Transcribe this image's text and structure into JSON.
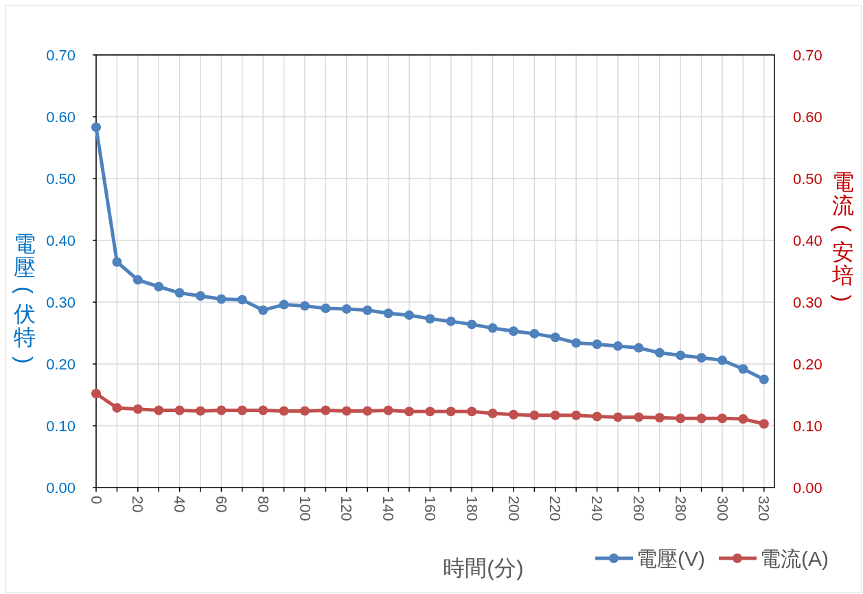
{
  "chart_data": {
    "type": "line",
    "xlabel": "時間(分)",
    "ylabel": "電壓(伏特)",
    "y2label": "電流(安培)",
    "x": [
      0,
      10,
      20,
      30,
      40,
      50,
      60,
      70,
      80,
      90,
      100,
      110,
      120,
      130,
      140,
      150,
      160,
      170,
      180,
      190,
      200,
      210,
      220,
      230,
      240,
      250,
      260,
      270,
      280,
      290,
      300,
      310,
      320
    ],
    "series": [
      {
        "name": "電壓(V)",
        "color": "#4f81bd",
        "values": [
          0.583,
          0.365,
          0.336,
          0.325,
          0.315,
          0.31,
          0.305,
          0.304,
          0.287,
          0.296,
          0.294,
          0.29,
          0.289,
          0.287,
          0.282,
          0.279,
          0.273,
          0.269,
          0.264,
          0.258,
          0.253,
          0.249,
          0.243,
          0.234,
          0.232,
          0.229,
          0.226,
          0.218,
          0.214,
          0.21,
          0.206,
          0.192,
          0.175
        ]
      },
      {
        "name": "電流(A)",
        "color": "#c0504d",
        "axis": "y2",
        "values": [
          0.152,
          0.129,
          0.127,
          0.125,
          0.125,
          0.124,
          0.125,
          0.125,
          0.125,
          0.124,
          0.124,
          0.125,
          0.124,
          0.124,
          0.125,
          0.123,
          0.123,
          0.123,
          0.123,
          0.12,
          0.118,
          0.117,
          0.117,
          0.117,
          0.115,
          0.114,
          0.114,
          0.113,
          0.112,
          0.112,
          0.112,
          0.111,
          0.103
        ]
      }
    ],
    "xlim": [
      0,
      325
    ],
    "xticks": [
      0,
      {
        "value": 10,
        "label": null
      },
      20,
      {
        "value": 30,
        "label": null
      },
      40,
      {
        "value": 50,
        "label": null
      },
      60,
      {
        "value": 70,
        "label": null
      },
      80,
      {
        "value": 90,
        "label": null
      },
      100,
      {
        "value": 110,
        "label": null
      },
      120,
      {
        "value": 130,
        "label": null
      },
      140,
      {
        "value": 150,
        "label": null
      },
      160,
      {
        "value": 170,
        "label": null
      },
      180,
      {
        "value": 190,
        "label": null
      },
      200,
      {
        "value": 210,
        "label": null
      },
      220,
      {
        "value": 230,
        "label": null
      },
      240,
      {
        "value": 250,
        "label": null
      },
      260,
      {
        "value": 270,
        "label": null
      },
      280,
      {
        "value": 290,
        "label": null
      },
      300,
      {
        "value": 310,
        "label": null
      },
      320
    ],
    "ylim": [
      0,
      0.7
    ],
    "yticks": [
      {
        "value": 0,
        "label": "0.00"
      },
      {
        "value": 0.1,
        "label": "0.10"
      },
      {
        "value": 0.2,
        "label": "0.20"
      },
      {
        "value": 0.3,
        "label": "0.30"
      },
      {
        "value": 0.4,
        "label": "0.40"
      },
      {
        "value": 0.5,
        "label": "0.50"
      },
      {
        "value": 0.6,
        "label": "0.60"
      },
      {
        "value": 0.7,
        "label": "0.70"
      }
    ],
    "y2lim": [
      0,
      0.7
    ],
    "y2ticks": [
      {
        "value": 0,
        "label": "0.00"
      },
      {
        "value": 0.1,
        "label": "0.10"
      },
      {
        "value": 0.2,
        "label": "0.20"
      },
      {
        "value": 0.3,
        "label": "0.30"
      },
      {
        "value": 0.4,
        "label": "0.40"
      },
      {
        "value": 0.5,
        "label": "0.50"
      },
      {
        "value": 0.6,
        "label": "0.60"
      },
      {
        "value": 0.7,
        "label": "0.70"
      }
    ],
    "grid": true,
    "legend": "bottom right",
    "marker": "circle",
    "line_style": "solid"
  }
}
